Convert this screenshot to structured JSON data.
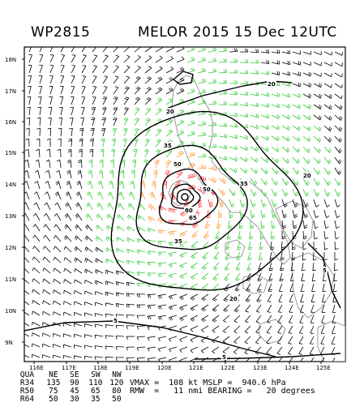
{
  "header": {
    "storm_id": "WP2815",
    "title": "MELOR 2015 15 Dec 12UTC"
  },
  "map": {
    "lat_labels": [
      "18N",
      "17N",
      "16N",
      "15N",
      "14N",
      "13N",
      "12N",
      "11N",
      "10N",
      "9N"
    ],
    "lon_labels": [
      "116E",
      "117E",
      "118E",
      "119E",
      "120E",
      "121E",
      "122E",
      "123E",
      "124E",
      "125E"
    ],
    "contour_labels": [
      {
        "text": "20"
      },
      {
        "text": "20"
      },
      {
        "text": "20"
      },
      {
        "text": "20"
      },
      {
        "text": "35"
      },
      {
        "text": "35"
      },
      {
        "text": "35"
      },
      {
        "text": "50"
      },
      {
        "text": "50"
      },
      {
        "text": "65"
      },
      {
        "text": "80"
      },
      {
        "text": "5"
      },
      {
        "text": "5"
      },
      {
        "text": "5"
      }
    ],
    "colors": {
      "land_outline": "#999999",
      "barb_light": "#000000",
      "barb_gale": "#33cc33",
      "barb_storm": "#ff9933",
      "barb_hurricane": "#ff3333",
      "contour": "#000000"
    }
  },
  "table": {
    "headers": [
      "QUA",
      "NE",
      "SE",
      "SW",
      "NW"
    ],
    "rows": [
      [
        "R34",
        "135",
        "90",
        "110",
        "120"
      ],
      [
        "R50",
        "75",
        "45",
        "65",
        "80"
      ],
      [
        "R64",
        "50",
        "30",
        "35",
        "50"
      ]
    ]
  },
  "summary": {
    "line1": "VMAX =  108 kt MSLP =  940.6 hPa",
    "line2": "RMW  =   11 nmi BEARING =   20 degrees"
  }
}
